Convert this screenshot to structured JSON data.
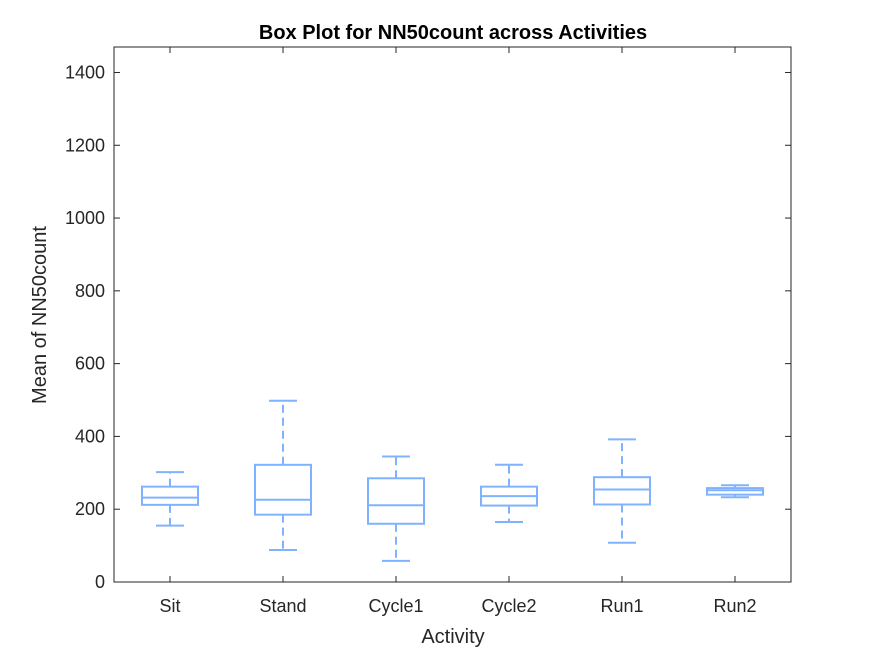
{
  "chart_data": {
    "type": "box",
    "title": "Box Plot for NN50count across Activities",
    "xlabel": "Activity",
    "ylabel": "Mean of NN50count",
    "ylim": [
      0,
      1470
    ],
    "yticks": [
      0,
      200,
      400,
      600,
      800,
      1000,
      1200,
      1400
    ],
    "categories": [
      "Sit",
      "Stand",
      "Cycle1",
      "Cycle2",
      "Run1",
      "Run2"
    ],
    "boxes": [
      {
        "min": 155,
        "q1": 212,
        "median": 232,
        "q3": 262,
        "max": 302
      },
      {
        "min": 88,
        "q1": 185,
        "median": 226,
        "q3": 322,
        "max": 498
      },
      {
        "min": 58,
        "q1": 160,
        "median": 211,
        "q3": 285,
        "max": 345
      },
      {
        "min": 165,
        "q1": 210,
        "median": 236,
        "q3": 262,
        "max": 322
      },
      {
        "min": 108,
        "q1": 213,
        "median": 254,
        "q3": 288,
        "max": 392
      },
      {
        "min": 233,
        "q1": 240,
        "median": 252,
        "q3": 258,
        "max": 266
      }
    ],
    "grid": false,
    "box_color": "#80b3ff"
  }
}
